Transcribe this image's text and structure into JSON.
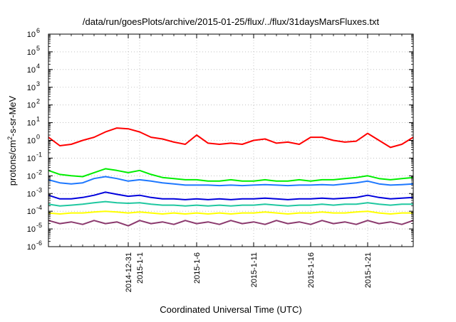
{
  "chart_data": {
    "type": "line",
    "title": "/data/run/goesPlots/archive/2015-01-25/flux/../flux/31daysMarsFluxes.txt",
    "xlabel": "Coordinated Universal Time (UTC)",
    "ylabel": "protons/cm²-s-sr-MeV",
    "y_scale": "log",
    "ylim": [
      1e-06,
      1000000.0
    ],
    "xlim": [
      "2014-12-24",
      "2015-01-25"
    ],
    "grid": true,
    "legend": "none",
    "y_ticks": [
      {
        "base": "10",
        "exp": "-6",
        "value": 1e-06
      },
      {
        "base": "10",
        "exp": "-5",
        "value": 1e-05
      },
      {
        "base": "10",
        "exp": "-4",
        "value": 0.0001
      },
      {
        "base": "10",
        "exp": "-3",
        "value": 0.001
      },
      {
        "base": "10",
        "exp": "-2",
        "value": 0.01
      },
      {
        "base": "10",
        "exp": "-1",
        "value": 0.1
      },
      {
        "base": "10",
        "exp": "0",
        "value": 1
      },
      {
        "base": "10",
        "exp": "1",
        "value": 10
      },
      {
        "base": "10",
        "exp": "2",
        "value": 100
      },
      {
        "base": "10",
        "exp": "3",
        "value": 1000
      },
      {
        "base": "10",
        "exp": "4",
        "value": 10000
      },
      {
        "base": "10",
        "exp": "5",
        "value": 100000
      },
      {
        "base": "10",
        "exp": "6",
        "value": 1000000
      }
    ],
    "x_ticks": [
      {
        "date": "2014-12-31",
        "label": "2014-12-31"
      },
      {
        "date": "2015-01-01",
        "label": "2015-1-1"
      },
      {
        "date": "2015-01-06",
        "label": "2015-1-6"
      },
      {
        "date": "2015-01-11",
        "label": "2015-1-11"
      },
      {
        "date": "2015-01-16",
        "label": "2015-1-16"
      },
      {
        "date": "2015-01-21",
        "label": "2015-1-21"
      }
    ],
    "series": [
      {
        "color": "#ff0000",
        "points": [
          [
            "2014-12-24",
            1.5
          ],
          [
            "2014-12-25",
            0.5
          ],
          [
            "2014-12-26",
            0.6
          ],
          [
            "2014-12-27",
            1.0
          ],
          [
            "2014-12-28",
            1.5
          ],
          [
            "2014-12-29",
            3.0
          ],
          [
            "2014-12-30",
            5.0
          ],
          [
            "2014-12-31",
            4.5
          ],
          [
            "2015-01-01",
            3.0
          ],
          [
            "2015-01-02",
            1.5
          ],
          [
            "2015-01-03",
            1.2
          ],
          [
            "2015-01-04",
            0.8
          ],
          [
            "2015-01-05",
            0.6
          ],
          [
            "2015-01-06",
            2.0
          ],
          [
            "2015-01-07",
            0.7
          ],
          [
            "2015-01-08",
            0.6
          ],
          [
            "2015-01-09",
            0.7
          ],
          [
            "2015-01-10",
            0.6
          ],
          [
            "2015-01-11",
            1.0
          ],
          [
            "2015-01-12",
            1.2
          ],
          [
            "2015-01-13",
            0.7
          ],
          [
            "2015-01-14",
            0.8
          ],
          [
            "2015-01-15",
            0.6
          ],
          [
            "2015-01-16",
            1.5
          ],
          [
            "2015-01-17",
            1.5
          ],
          [
            "2015-01-18",
            1.0
          ],
          [
            "2015-01-19",
            0.8
          ],
          [
            "2015-01-20",
            0.9
          ],
          [
            "2015-01-21",
            2.5
          ],
          [
            "2015-01-22",
            1.0
          ],
          [
            "2015-01-23",
            0.4
          ],
          [
            "2015-01-24",
            0.6
          ],
          [
            "2015-01-25",
            1.5
          ]
        ]
      },
      {
        "color": "#00ee00",
        "points": [
          [
            "2014-12-24",
            0.02
          ],
          [
            "2014-12-25",
            0.012
          ],
          [
            "2014-12-26",
            0.01
          ],
          [
            "2014-12-27",
            0.009
          ],
          [
            "2014-12-28",
            0.015
          ],
          [
            "2014-12-29",
            0.025
          ],
          [
            "2014-12-30",
            0.02
          ],
          [
            "2014-12-31",
            0.015
          ],
          [
            "2015-01-01",
            0.02
          ],
          [
            "2015-01-02",
            0.012
          ],
          [
            "2015-01-03",
            0.008
          ],
          [
            "2015-01-04",
            0.007
          ],
          [
            "2015-01-05",
            0.006
          ],
          [
            "2015-01-06",
            0.006
          ],
          [
            "2015-01-07",
            0.005
          ],
          [
            "2015-01-08",
            0.005
          ],
          [
            "2015-01-09",
            0.006
          ],
          [
            "2015-01-10",
            0.005
          ],
          [
            "2015-01-11",
            0.005
          ],
          [
            "2015-01-12",
            0.006
          ],
          [
            "2015-01-13",
            0.005
          ],
          [
            "2015-01-14",
            0.005
          ],
          [
            "2015-01-15",
            0.006
          ],
          [
            "2015-01-16",
            0.005
          ],
          [
            "2015-01-17",
            0.006
          ],
          [
            "2015-01-18",
            0.006
          ],
          [
            "2015-01-19",
            0.007
          ],
          [
            "2015-01-20",
            0.008
          ],
          [
            "2015-01-21",
            0.01
          ],
          [
            "2015-01-22",
            0.007
          ],
          [
            "2015-01-23",
            0.006
          ],
          [
            "2015-01-24",
            0.007
          ],
          [
            "2015-01-25",
            0.008
          ]
        ]
      },
      {
        "color": "#1e78ff",
        "points": [
          [
            "2014-12-24",
            0.006
          ],
          [
            "2014-12-25",
            0.004
          ],
          [
            "2014-12-26",
            0.0035
          ],
          [
            "2014-12-27",
            0.004
          ],
          [
            "2014-12-28",
            0.007
          ],
          [
            "2014-12-29",
            0.009
          ],
          [
            "2014-12-30",
            0.007
          ],
          [
            "2014-12-31",
            0.005
          ],
          [
            "2015-01-01",
            0.006
          ],
          [
            "2015-01-02",
            0.005
          ],
          [
            "2015-01-03",
            0.004
          ],
          [
            "2015-01-04",
            0.0035
          ],
          [
            "2015-01-05",
            0.003
          ],
          [
            "2015-01-06",
            0.003
          ],
          [
            "2015-01-07",
            0.003
          ],
          [
            "2015-01-08",
            0.0028
          ],
          [
            "2015-01-09",
            0.003
          ],
          [
            "2015-01-10",
            0.0028
          ],
          [
            "2015-01-11",
            0.003
          ],
          [
            "2015-01-12",
            0.0032
          ],
          [
            "2015-01-13",
            0.003
          ],
          [
            "2015-01-14",
            0.0028
          ],
          [
            "2015-01-15",
            0.003
          ],
          [
            "2015-01-16",
            0.003
          ],
          [
            "2015-01-17",
            0.0032
          ],
          [
            "2015-01-18",
            0.003
          ],
          [
            "2015-01-19",
            0.0035
          ],
          [
            "2015-01-20",
            0.004
          ],
          [
            "2015-01-21",
            0.005
          ],
          [
            "2015-01-22",
            0.0035
          ],
          [
            "2015-01-23",
            0.003
          ],
          [
            "2015-01-24",
            0.0032
          ],
          [
            "2015-01-25",
            0.0035
          ]
        ]
      },
      {
        "color": "#0000dd",
        "points": [
          [
            "2014-12-24",
            0.0008
          ],
          [
            "2014-12-25",
            0.0005
          ],
          [
            "2014-12-26",
            0.0005
          ],
          [
            "2014-12-27",
            0.0006
          ],
          [
            "2014-12-28",
            0.0008
          ],
          [
            "2014-12-29",
            0.0012
          ],
          [
            "2014-12-30",
            0.0009
          ],
          [
            "2014-12-31",
            0.0007
          ],
          [
            "2015-01-01",
            0.0008
          ],
          [
            "2015-01-02",
            0.0006
          ],
          [
            "2015-01-03",
            0.0005
          ],
          [
            "2015-01-04",
            0.0005
          ],
          [
            "2015-01-05",
            0.00045
          ],
          [
            "2015-01-06",
            0.0005
          ],
          [
            "2015-01-07",
            0.00045
          ],
          [
            "2015-01-08",
            0.0005
          ],
          [
            "2015-01-09",
            0.00045
          ],
          [
            "2015-01-10",
            0.0005
          ],
          [
            "2015-01-11",
            0.0005
          ],
          [
            "2015-01-12",
            0.00055
          ],
          [
            "2015-01-13",
            0.0005
          ],
          [
            "2015-01-14",
            0.00045
          ],
          [
            "2015-01-15",
            0.0005
          ],
          [
            "2015-01-16",
            0.0005
          ],
          [
            "2015-01-17",
            0.00055
          ],
          [
            "2015-01-18",
            0.0005
          ],
          [
            "2015-01-19",
            0.00055
          ],
          [
            "2015-01-20",
            0.0006
          ],
          [
            "2015-01-21",
            0.0008
          ],
          [
            "2015-01-22",
            0.0006
          ],
          [
            "2015-01-23",
            0.0005
          ],
          [
            "2015-01-24",
            0.00055
          ],
          [
            "2015-01-25",
            0.0006
          ]
        ]
      },
      {
        "color": "#20c8a0",
        "points": [
          [
            "2014-12-24",
            0.00025
          ],
          [
            "2014-12-25",
            0.0002
          ],
          [
            "2014-12-26",
            0.00022
          ],
          [
            "2014-12-27",
            0.00025
          ],
          [
            "2014-12-28",
            0.0003
          ],
          [
            "2014-12-29",
            0.00035
          ],
          [
            "2014-12-30",
            0.0003
          ],
          [
            "2014-12-31",
            0.00028
          ],
          [
            "2015-01-01",
            0.0003
          ],
          [
            "2015-01-02",
            0.00025
          ],
          [
            "2015-01-03",
            0.00022
          ],
          [
            "2015-01-04",
            0.00022
          ],
          [
            "2015-01-05",
            0.0002
          ],
          [
            "2015-01-06",
            0.00022
          ],
          [
            "2015-01-07",
            0.0002
          ],
          [
            "2015-01-08",
            0.00022
          ],
          [
            "2015-01-09",
            0.0002
          ],
          [
            "2015-01-10",
            0.00022
          ],
          [
            "2015-01-11",
            0.00022
          ],
          [
            "2015-01-12",
            0.00025
          ],
          [
            "2015-01-13",
            0.00022
          ],
          [
            "2015-01-14",
            0.0002
          ],
          [
            "2015-01-15",
            0.00022
          ],
          [
            "2015-01-16",
            0.00022
          ],
          [
            "2015-01-17",
            0.00025
          ],
          [
            "2015-01-18",
            0.00022
          ],
          [
            "2015-01-19",
            0.00025
          ],
          [
            "2015-01-20",
            0.00025
          ],
          [
            "2015-01-21",
            0.0003
          ],
          [
            "2015-01-22",
            0.00025
          ],
          [
            "2015-01-23",
            0.00022
          ],
          [
            "2015-01-24",
            0.00025
          ],
          [
            "2015-01-25",
            0.00025
          ]
        ]
      },
      {
        "color": "#ffff00",
        "points": [
          [
            "2014-12-24",
            8e-05
          ],
          [
            "2014-12-25",
            7e-05
          ],
          [
            "2014-12-26",
            8e-05
          ],
          [
            "2014-12-27",
            8e-05
          ],
          [
            "2014-12-28",
            9e-05
          ],
          [
            "2014-12-29",
            0.0001
          ],
          [
            "2014-12-30",
            9e-05
          ],
          [
            "2014-12-31",
            8e-05
          ],
          [
            "2015-01-01",
            9e-05
          ],
          [
            "2015-01-02",
            8e-05
          ],
          [
            "2015-01-03",
            7e-05
          ],
          [
            "2015-01-04",
            8e-05
          ],
          [
            "2015-01-05",
            7e-05
          ],
          [
            "2015-01-06",
            8e-05
          ],
          [
            "2015-01-07",
            7e-05
          ],
          [
            "2015-01-08",
            8e-05
          ],
          [
            "2015-01-09",
            7e-05
          ],
          [
            "2015-01-10",
            8e-05
          ],
          [
            "2015-01-11",
            8e-05
          ],
          [
            "2015-01-12",
            9e-05
          ],
          [
            "2015-01-13",
            8e-05
          ],
          [
            "2015-01-14",
            7e-05
          ],
          [
            "2015-01-15",
            8e-05
          ],
          [
            "2015-01-16",
            8e-05
          ],
          [
            "2015-01-17",
            9e-05
          ],
          [
            "2015-01-18",
            8e-05
          ],
          [
            "2015-01-19",
            8e-05
          ],
          [
            "2015-01-20",
            9e-05
          ],
          [
            "2015-01-21",
            0.0001
          ],
          [
            "2015-01-22",
            8e-05
          ],
          [
            "2015-01-23",
            7e-05
          ],
          [
            "2015-01-24",
            8e-05
          ],
          [
            "2015-01-25",
            8e-05
          ]
        ]
      },
      {
        "color": "#8b3a6e",
        "points": [
          [
            "2014-12-24",
            3e-05
          ],
          [
            "2014-12-25",
            2e-05
          ],
          [
            "2014-12-26",
            2.5e-05
          ],
          [
            "2014-12-27",
            1.8e-05
          ],
          [
            "2014-12-28",
            3e-05
          ],
          [
            "2014-12-29",
            2e-05
          ],
          [
            "2014-12-30",
            2.5e-05
          ],
          [
            "2014-12-31",
            1.5e-05
          ],
          [
            "2015-01-01",
            3e-05
          ],
          [
            "2015-01-02",
            2e-05
          ],
          [
            "2015-01-03",
            2.5e-05
          ],
          [
            "2015-01-04",
            1.8e-05
          ],
          [
            "2015-01-05",
            3e-05
          ],
          [
            "2015-01-06",
            2e-05
          ],
          [
            "2015-01-07",
            2.5e-05
          ],
          [
            "2015-01-08",
            1.8e-05
          ],
          [
            "2015-01-09",
            3e-05
          ],
          [
            "2015-01-10",
            2e-05
          ],
          [
            "2015-01-11",
            2.5e-05
          ],
          [
            "2015-01-12",
            1.8e-05
          ],
          [
            "2015-01-13",
            3e-05
          ],
          [
            "2015-01-14",
            2e-05
          ],
          [
            "2015-01-15",
            2.5e-05
          ],
          [
            "2015-01-16",
            1.8e-05
          ],
          [
            "2015-01-17",
            3e-05
          ],
          [
            "2015-01-18",
            2e-05
          ],
          [
            "2015-01-19",
            2.5e-05
          ],
          [
            "2015-01-20",
            1.8e-05
          ],
          [
            "2015-01-21",
            3e-05
          ],
          [
            "2015-01-22",
            2e-05
          ],
          [
            "2015-01-23",
            2.5e-05
          ],
          [
            "2015-01-24",
            1.8e-05
          ],
          [
            "2015-01-25",
            3e-05
          ]
        ]
      }
    ]
  }
}
